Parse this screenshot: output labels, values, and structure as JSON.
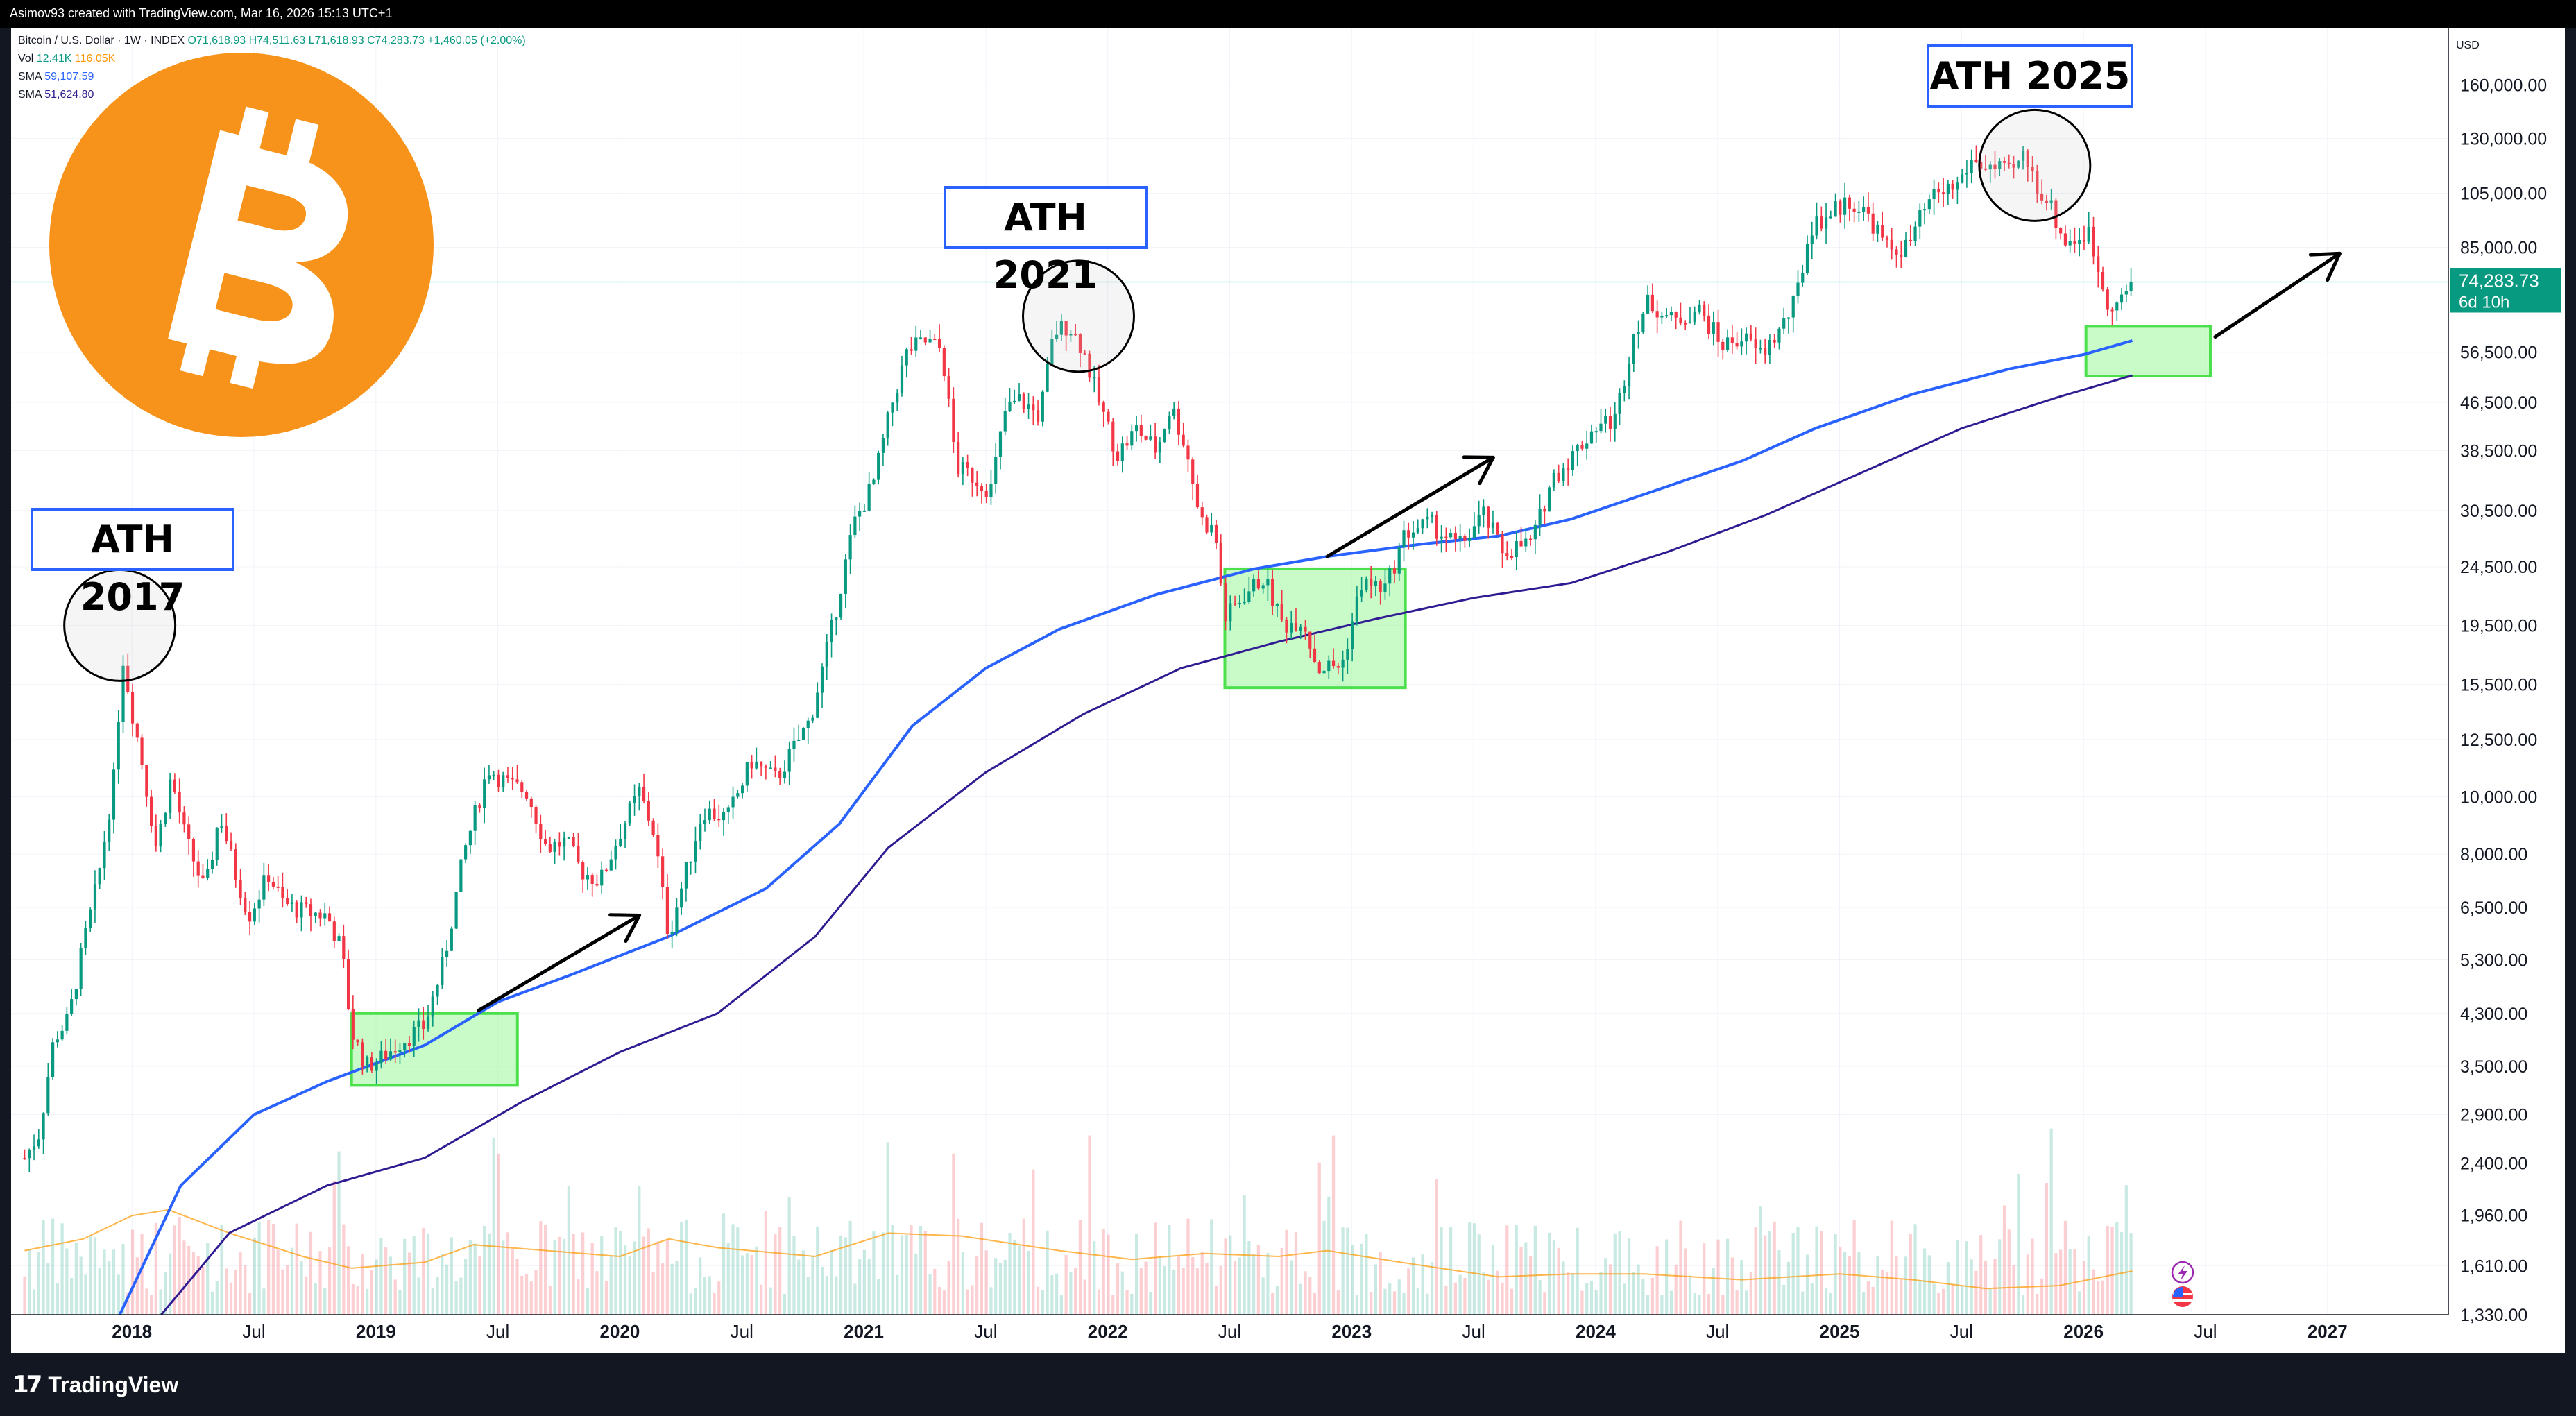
{
  "header": {
    "credit": "Asimov93 created with TradingView.com, Mar 16, 2026 15:13 UTC+1"
  },
  "legend": {
    "symbol": "Bitcoin / U.S. Dollar · 1W · INDEX",
    "open": "O71,618.93",
    "high": "H74,511.63",
    "low": "L71,618.93",
    "close": "C74,283.73",
    "change": "+1,460.05 (+2.00%)",
    "vol_label": "Vol",
    "vol_value": "12.41K",
    "vol_ma": "116.05K",
    "sma_label": "SMA",
    "sma1": "59,107.59",
    "sma2": "51,624.80"
  },
  "currency": "USD",
  "annotations": {
    "ath_2017": "ATH 2017",
    "ath_2021": "ATH 2021",
    "ath_2025": "ATH 2025"
  },
  "price_tag": {
    "value": "74,283.73",
    "countdown": "6d 10h"
  },
  "icons": [
    "bitcoin-logo-icon",
    "tradingview-logo-icon",
    "lightning-icon",
    "us-flag-icon"
  ],
  "footer": {
    "brand": "TradingView"
  },
  "colors": {
    "up": "#089981",
    "down": "#f23645",
    "sma_fast": "#2962ff",
    "sma_slow": "#311b92",
    "vol_ma": "#ff9800",
    "bitcoin": "#f7931a",
    "zone_fill": "#9af79a",
    "zone_border": "#4ce04c",
    "ath_border": "#2962ff"
  },
  "chart_data": {
    "type": "candlestick",
    "title": "",
    "timeframe": "1W",
    "xlabel": "",
    "ylabel": "",
    "ylog": true,
    "ylim": [
      1330,
      200000
    ],
    "xlim": [
      2017.55,
      2027.45
    ],
    "x_ticks": [
      {
        "x": 2018.0,
        "label": "2018"
      },
      {
        "x": 2018.5,
        "label": "Jul"
      },
      {
        "x": 2019.0,
        "label": "2019"
      },
      {
        "x": 2019.5,
        "label": "Jul"
      },
      {
        "x": 2020.0,
        "label": "2020"
      },
      {
        "x": 2020.5,
        "label": "Jul"
      },
      {
        "x": 2021.0,
        "label": "2021"
      },
      {
        "x": 2021.5,
        "label": "Jul"
      },
      {
        "x": 2022.0,
        "label": "2022"
      },
      {
        "x": 2022.5,
        "label": "Jul"
      },
      {
        "x": 2023.0,
        "label": "2023"
      },
      {
        "x": 2023.5,
        "label": "Jul"
      },
      {
        "x": 2024.0,
        "label": "2024"
      },
      {
        "x": 2024.5,
        "label": "Jul"
      },
      {
        "x": 2025.0,
        "label": "2025"
      },
      {
        "x": 2025.5,
        "label": "Jul"
      },
      {
        "x": 2026.0,
        "label": "2026"
      },
      {
        "x": 2026.5,
        "label": "Jul"
      },
      {
        "x": 2027.0,
        "label": "2027"
      }
    ],
    "y_ticks": [
      {
        "value": 160000,
        "label": "160,000.00"
      },
      {
        "value": 130000,
        "label": "130,000.00"
      },
      {
        "value": 105000,
        "label": "105,000.00"
      },
      {
        "value": 85000,
        "label": "85,000.00"
      },
      {
        "value": 56500,
        "label": "56,500.00"
      },
      {
        "value": 46500,
        "label": "46,500.00"
      },
      {
        "value": 38500,
        "label": "38,500.00"
      },
      {
        "value": 30500,
        "label": "30,500.00"
      },
      {
        "value": 24500,
        "label": "24,500.00"
      },
      {
        "value": 19500,
        "label": "19,500.00"
      },
      {
        "value": 15500,
        "label": "15,500.00"
      },
      {
        "value": 12500,
        "label": "12,500.00"
      },
      {
        "value": 10000,
        "label": "10,000.00"
      },
      {
        "value": 8000,
        "label": "8,000.00"
      },
      {
        "value": 6500,
        "label": "6,500.00"
      },
      {
        "value": 5300,
        "label": "5,300.00"
      },
      {
        "value": 4300,
        "label": "4,300.00"
      },
      {
        "value": 3500,
        "label": "3,500.00"
      },
      {
        "value": 2900,
        "label": "2,900.00"
      },
      {
        "value": 2400,
        "label": "2,400.00"
      },
      {
        "value": 1960,
        "label": "1,960.00"
      },
      {
        "value": 1610,
        "label": "1,610.00"
      },
      {
        "value": 1330,
        "label": "1,330.00"
      }
    ],
    "price_anchors": [
      [
        2017.56,
        2450
      ],
      [
        2017.62,
        2700
      ],
      [
        2017.68,
        3900
      ],
      [
        2017.74,
        4200
      ],
      [
        2017.8,
        5600
      ],
      [
        2017.86,
        7200
      ],
      [
        2017.93,
        11000
      ],
      [
        2017.96,
        17500
      ],
      [
        2018.0,
        14000
      ],
      [
        2018.04,
        11500
      ],
      [
        2018.1,
        8200
      ],
      [
        2018.16,
        10800
      ],
      [
        2018.22,
        8500
      ],
      [
        2018.3,
        6900
      ],
      [
        2018.36,
        9400
      ],
      [
        2018.42,
        7500
      ],
      [
        2018.48,
        6300
      ],
      [
        2018.56,
        7400
      ],
      [
        2018.62,
        6600
      ],
      [
        2018.7,
        6400
      ],
      [
        2018.8,
        6300
      ],
      [
        2018.86,
        5500
      ],
      [
        2018.9,
        4000
      ],
      [
        2018.96,
        3500
      ],
      [
        2019.02,
        3600
      ],
      [
        2019.1,
        3850
      ],
      [
        2019.2,
        4100
      ],
      [
        2019.28,
        5300
      ],
      [
        2019.36,
        8000
      ],
      [
        2019.46,
        11200
      ],
      [
        2019.54,
        10500
      ],
      [
        2019.62,
        10200
      ],
      [
        2019.7,
        8200
      ],
      [
        2019.78,
        8400
      ],
      [
        2019.84,
        7500
      ],
      [
        2019.92,
        7200
      ],
      [
        2020.0,
        8700
      ],
      [
        2020.08,
        10200
      ],
      [
        2020.14,
        8700
      ],
      [
        2020.2,
        5800
      ],
      [
        2020.26,
        7200
      ],
      [
        2020.34,
        9500
      ],
      [
        2020.44,
        9200
      ],
      [
        2020.54,
        11500
      ],
      [
        2020.64,
        10700
      ],
      [
        2020.78,
        13500
      ],
      [
        2020.86,
        18500
      ],
      [
        2020.96,
        29000
      ],
      [
        2021.04,
        34000
      ],
      [
        2021.12,
        47000
      ],
      [
        2021.18,
        57000
      ],
      [
        2021.26,
        59000
      ],
      [
        2021.32,
        57000
      ],
      [
        2021.38,
        36000
      ],
      [
        2021.44,
        35000
      ],
      [
        2021.52,
        33000
      ],
      [
        2021.58,
        45000
      ],
      [
        2021.64,
        47000
      ],
      [
        2021.72,
        44000
      ],
      [
        2021.78,
        61000
      ],
      [
        2021.84,
        63000
      ],
      [
        2021.9,
        57000
      ],
      [
        2021.96,
        47000
      ],
      [
        2022.04,
        38000
      ],
      [
        2022.12,
        42000
      ],
      [
        2022.2,
        38500
      ],
      [
        2022.26,
        46000
      ],
      [
        2022.32,
        39000
      ],
      [
        2022.38,
        29500
      ],
      [
        2022.44,
        28000
      ],
      [
        2022.48,
        20000
      ],
      [
        2022.56,
        22000
      ],
      [
        2022.64,
        23500
      ],
      [
        2022.72,
        19500
      ],
      [
        2022.8,
        20000
      ],
      [
        2022.86,
        16500
      ],
      [
        2022.96,
        16700
      ],
      [
        2023.04,
        23000
      ],
      [
        2023.14,
        22500
      ],
      [
        2023.22,
        28000
      ],
      [
        2023.32,
        29000
      ],
      [
        2023.44,
        26500
      ],
      [
        2023.54,
        30000
      ],
      [
        2023.62,
        26000
      ],
      [
        2023.74,
        27000
      ],
      [
        2023.82,
        34500
      ],
      [
        2023.9,
        37500
      ],
      [
        2024.0,
        42500
      ],
      [
        2024.08,
        43500
      ],
      [
        2024.16,
        62000
      ],
      [
        2024.22,
        69000
      ],
      [
        2024.32,
        63500
      ],
      [
        2024.42,
        67000
      ],
      [
        2024.52,
        58000
      ],
      [
        2024.6,
        60000
      ],
      [
        2024.68,
        56000
      ],
      [
        2024.76,
        62000
      ],
      [
        2024.82,
        69000
      ],
      [
        2024.88,
        92000
      ],
      [
        2024.96,
        97000
      ],
      [
        2025.04,
        102000
      ],
      [
        2025.12,
        96000
      ],
      [
        2025.2,
        84000
      ],
      [
        2025.28,
        85000
      ],
      [
        2025.34,
        97000
      ],
      [
        2025.4,
        105000
      ],
      [
        2025.48,
        108000
      ],
      [
        2025.54,
        119000
      ],
      [
        2025.62,
        116000
      ],
      [
        2025.7,
        113000
      ],
      [
        2025.76,
        122000
      ],
      [
        2025.8,
        110000
      ],
      [
        2025.86,
        101000
      ],
      [
        2025.92,
        87000
      ],
      [
        2025.98,
        88000
      ],
      [
        2026.02,
        90000
      ],
      [
        2026.06,
        78000
      ],
      [
        2026.1,
        69000
      ],
      [
        2026.14,
        68000
      ],
      [
        2026.2,
        74283.73
      ]
    ],
    "sma_fast": {
      "name": "SMA",
      "last_value": 59107.59,
      "points": [
        [
          2017.95,
          1330
        ],
        [
          2018.2,
          2200
        ],
        [
          2018.5,
          2900
        ],
        [
          2018.8,
          3300
        ],
        [
          2019.2,
          3800
        ],
        [
          2019.5,
          4500
        ],
        [
          2019.8,
          5000
        ],
        [
          2020.2,
          5800
        ],
        [
          2020.6,
          7000
        ],
        [
          2020.9,
          9000
        ],
        [
          2021.2,
          13200
        ],
        [
          2021.5,
          16500
        ],
        [
          2021.8,
          19200
        ],
        [
          2022.2,
          22000
        ],
        [
          2022.6,
          24300
        ],
        [
          2022.9,
          25500
        ],
        [
          2023.3,
          26800
        ],
        [
          2023.6,
          27600
        ],
        [
          2023.9,
          29500
        ],
        [
          2024.2,
          32500
        ],
        [
          2024.6,
          37000
        ],
        [
          2024.9,
          42000
        ],
        [
          2025.3,
          48000
        ],
        [
          2025.7,
          53000
        ],
        [
          2026.0,
          56000
        ],
        [
          2026.2,
          59107.59
        ]
      ]
    },
    "sma_slow": {
      "name": "SMA",
      "last_value": 51624.8,
      "points": [
        [
          2018.12,
          1330
        ],
        [
          2018.4,
          1830
        ],
        [
          2018.8,
          2200
        ],
        [
          2019.2,
          2450
        ],
        [
          2019.6,
          3050
        ],
        [
          2020.0,
          3700
        ],
        [
          2020.4,
          4300
        ],
        [
          2020.8,
          5800
        ],
        [
          2021.1,
          8200
        ],
        [
          2021.5,
          11000
        ],
        [
          2021.9,
          13800
        ],
        [
          2022.3,
          16500
        ],
        [
          2022.7,
          18300
        ],
        [
          2023.1,
          20000
        ],
        [
          2023.5,
          21700
        ],
        [
          2023.9,
          23000
        ],
        [
          2024.3,
          26000
        ],
        [
          2024.7,
          30000
        ],
        [
          2025.1,
          35500
        ],
        [
          2025.5,
          42000
        ],
        [
          2025.9,
          47500
        ],
        [
          2026.2,
          51624.8
        ]
      ]
    },
    "volume_ma_series": [
      [
        2017.56,
        0.22
      ],
      [
        2017.8,
        0.26
      ],
      [
        2018.0,
        0.34
      ],
      [
        2018.15,
        0.36
      ],
      [
        2018.4,
        0.28
      ],
      [
        2018.7,
        0.2
      ],
      [
        2018.9,
        0.16
      ],
      [
        2019.2,
        0.18
      ],
      [
        2019.4,
        0.24
      ],
      [
        2019.7,
        0.22
      ],
      [
        2020.0,
        0.2
      ],
      [
        2020.2,
        0.26
      ],
      [
        2020.4,
        0.23
      ],
      [
        2020.8,
        0.2
      ],
      [
        2021.1,
        0.28
      ],
      [
        2021.4,
        0.27
      ],
      [
        2021.8,
        0.22
      ],
      [
        2022.1,
        0.19
      ],
      [
        2022.4,
        0.21
      ],
      [
        2022.7,
        0.2
      ],
      [
        2022.9,
        0.22
      ],
      [
        2023.2,
        0.18
      ],
      [
        2023.6,
        0.13
      ],
      [
        2023.9,
        0.14
      ],
      [
        2024.2,
        0.14
      ],
      [
        2024.6,
        0.12
      ],
      [
        2025.0,
        0.14
      ],
      [
        2025.3,
        0.12
      ],
      [
        2025.6,
        0.09
      ],
      [
        2025.9,
        0.1
      ],
      [
        2026.2,
        0.15
      ]
    ],
    "zones": [
      {
        "x0": 2018.9,
        "x1": 2019.58,
        "y0": 3250,
        "y1": 4300
      },
      {
        "x0": 2022.48,
        "x1": 2023.22,
        "y0": 15300,
        "y1": 24300
      },
      {
        "x0": 2026.01,
        "x1": 2026.52,
        "y0": 51500,
        "y1": 62500
      }
    ],
    "ath_circles": [
      {
        "x": 2017.95,
        "y": 19500
      },
      {
        "x": 2021.88,
        "y": 65000
      },
      {
        "x": 2025.8,
        "y": 117000
      }
    ],
    "arrows": [
      {
        "from": [
          2019.42,
          4350
        ],
        "to": [
          2020.08,
          6300
        ]
      },
      {
        "from": [
          2022.9,
          25500
        ],
        "to": [
          2023.58,
          37500
        ]
      },
      {
        "from": [
          2026.54,
          60000
        ],
        "to": [
          2027.05,
          83000
        ]
      }
    ]
  }
}
